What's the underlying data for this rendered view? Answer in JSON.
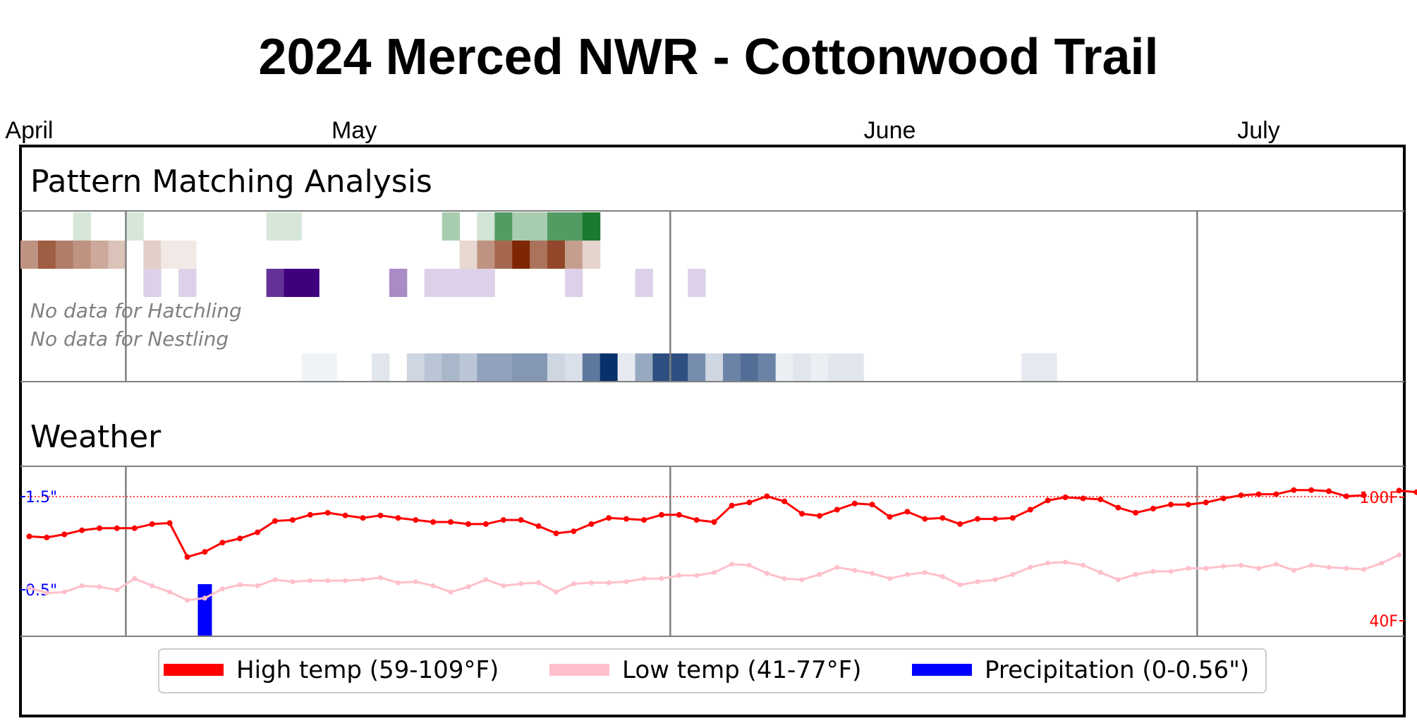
{
  "title": "2024 Merced NWR - Cottonwood Trail",
  "months": [
    {
      "label": "April",
      "day": 0
    },
    {
      "label": "May",
      "day": 18.5
    },
    {
      "label": "June",
      "day": 49
    },
    {
      "label": "July",
      "day": 70
    }
  ],
  "chart_data": {
    "type": "heatmap",
    "x_start": "2024-04-25",
    "x_end": "2024-07-12",
    "month_boundaries": [
      "2024-05-01",
      "2024-06-01",
      "2024-07-01"
    ],
    "pattern_section": {
      "title": "Pattern Matching Analysis",
      "rows": [
        {
          "palette": "green",
          "color": "#1a7a2e",
          "cells": [
            {
              "day": 3,
              "v": 0.18
            },
            {
              "day": 6,
              "v": 0.18
            },
            {
              "day": 14,
              "v": 0.18
            },
            {
              "day": 15,
              "v": 0.18
            },
            {
              "day": 24,
              "v": 0.38
            },
            {
              "day": 26,
              "v": 0.2
            },
            {
              "day": 27,
              "v": 0.75
            },
            {
              "day": 28,
              "v": 0.38
            },
            {
              "day": 29,
              "v": 0.38
            },
            {
              "day": 30,
              "v": 0.75
            },
            {
              "day": 31,
              "v": 0.75
            },
            {
              "day": 32,
              "v": 1.0
            }
          ]
        },
        {
          "palette": "orange",
          "color": "#7f2704",
          "cells": [
            {
              "day": 0,
              "v": 0.5
            },
            {
              "day": 1,
              "v": 0.75
            },
            {
              "day": 2,
              "v": 0.6
            },
            {
              "day": 3,
              "v": 0.5
            },
            {
              "day": 4,
              "v": 0.4
            },
            {
              "day": 5,
              "v": 0.28
            },
            {
              "day": 7,
              "v": 0.22
            },
            {
              "day": 8,
              "v": 0.1
            },
            {
              "day": 9,
              "v": 0.1
            },
            {
              "day": 25,
              "v": 0.18
            },
            {
              "day": 26,
              "v": 0.5
            },
            {
              "day": 27,
              "v": 0.7
            },
            {
              "day": 28,
              "v": 1.0
            },
            {
              "day": 29,
              "v": 0.65
            },
            {
              "day": 30,
              "v": 0.85
            },
            {
              "day": 31,
              "v": 0.45
            },
            {
              "day": 32,
              "v": 0.2
            }
          ]
        },
        {
          "palette": "purple",
          "color": "#3f007d",
          "cells": [
            {
              "day": 7,
              "v": 0.18
            },
            {
              "day": 9,
              "v": 0.18
            },
            {
              "day": 14,
              "v": 0.8
            },
            {
              "day": 15,
              "v": 1.0
            },
            {
              "day": 16,
              "v": 1.0
            },
            {
              "day": 21,
              "v": 0.45
            },
            {
              "day": 23,
              "v": 0.18
            },
            {
              "day": 24,
              "v": 0.18
            },
            {
              "day": 25,
              "v": 0.18
            },
            {
              "day": 26,
              "v": 0.18
            },
            {
              "day": 31,
              "v": 0.18
            },
            {
              "day": 35,
              "v": 0.18
            },
            {
              "day": 38,
              "v": 0.18
            }
          ]
        },
        {
          "label": "No data for Hatchling"
        },
        {
          "label": "No data for Nestling"
        },
        {
          "palette": "blue",
          "color": "#08306b",
          "cells": [
            {
              "day": 16,
              "v": 0.06
            },
            {
              "day": 17,
              "v": 0.06
            },
            {
              "day": 20,
              "v": 0.12
            },
            {
              "day": 22,
              "v": 0.2
            },
            {
              "day": 23,
              "v": 0.28
            },
            {
              "day": 24,
              "v": 0.35
            },
            {
              "day": 25,
              "v": 0.28
            },
            {
              "day": 26,
              "v": 0.45
            },
            {
              "day": 27,
              "v": 0.45
            },
            {
              "day": 28,
              "v": 0.5
            },
            {
              "day": 29,
              "v": 0.5
            },
            {
              "day": 30,
              "v": 0.2
            },
            {
              "day": 31,
              "v": 0.15
            },
            {
              "day": 32,
              "v": 0.65
            },
            {
              "day": 33,
              "v": 1.0
            },
            {
              "day": 34,
              "v": 0.1
            },
            {
              "day": 35,
              "v": 0.42
            },
            {
              "day": 36,
              "v": 0.85
            },
            {
              "day": 37,
              "v": 0.85
            },
            {
              "day": 38,
              "v": 0.55
            },
            {
              "day": 39,
              "v": 0.2
            },
            {
              "day": 40,
              "v": 0.6
            },
            {
              "day": 41,
              "v": 0.7
            },
            {
              "day": 42,
              "v": 0.6
            },
            {
              "day": 43,
              "v": 0.08
            },
            {
              "day": 44,
              "v": 0.12
            },
            {
              "day": 45,
              "v": 0.08
            },
            {
              "day": 46,
              "v": 0.12
            },
            {
              "day": 47,
              "v": 0.12
            },
            {
              "day": 57,
              "v": 0.1
            },
            {
              "day": 58,
              "v": 0.1
            }
          ]
        }
      ]
    },
    "weather_section": {
      "title": "Weather",
      "temp_axis": {
        "min": 40,
        "max": 100,
        "labels": [
          "40F",
          "100F"
        ]
      },
      "precip_axis": {
        "labels": [
          "0.5\"",
          "1.5\""
        ],
        "label_values": [
          0.5,
          1.5
        ]
      },
      "precip_ref_line": 1.5,
      "series": [
        {
          "name": "High temp (59-109°F)",
          "color": "#ff0000",
          "values": [
            81,
            80.5,
            82,
            84,
            85,
            85,
            85,
            87,
            87.5,
            71,
            73.5,
            78,
            80,
            83,
            88.5,
            89,
            91.5,
            92.5,
            91.2,
            90,
            91.2,
            90,
            89,
            88,
            88,
            87,
            87,
            89,
            89,
            86,
            82.5,
            83.5,
            87,
            90,
            89.5,
            89,
            91.5,
            91.5,
            89,
            88,
            96,
            97.5,
            100.5,
            98,
            92,
            91,
            94,
            97,
            96.5,
            90.5,
            93,
            89.5,
            90,
            87,
            89.5,
            89.5,
            90,
            94,
            98.5,
            100,
            99.5,
            99,
            95,
            92.5,
            94.5,
            96.5,
            96.5,
            97.5,
            99.5,
            101,
            101.5,
            101.5,
            103.5,
            103.5,
            103,
            100.5,
            101,
            null,
            103.3,
            102.5
          ]
        },
        {
          "name": "Low temp (41-77°F)",
          "color": "#ffc0cb",
          "values": [
            56,
            53.5,
            54,
            57,
            56.5,
            55,
            60.5,
            57,
            54,
            50,
            51,
            55.5,
            57.5,
            57,
            60,
            59,
            59.5,
            59.5,
            59.5,
            60,
            61,
            58.5,
            59,
            57,
            54,
            56.5,
            60,
            57,
            58,
            58.5,
            54,
            58,
            58.5,
            58.5,
            59,
            60.5,
            60.5,
            62,
            62,
            63.5,
            67.5,
            67,
            63,
            60.5,
            60,
            62.5,
            66,
            64.5,
            63,
            60.5,
            62.5,
            63.5,
            61.5,
            57.5,
            59,
            60,
            62.5,
            66,
            68,
            68.5,
            67,
            63.5,
            60,
            62.5,
            64,
            64,
            65.5,
            65.5,
            66.5,
            67,
            65.5,
            67.5,
            64.5,
            67,
            66,
            65.5,
            65,
            68,
            72
          ]
        },
        {
          "name": "Precipitation (0-0.56\")",
          "color": "#0000ff",
          "values": [
            {
              "day": 10,
              "v": 0.56
            }
          ]
        }
      ]
    },
    "legend": [
      {
        "label": "High temp (59-109°F)",
        "color": "#ff0000"
      },
      {
        "label": "Low temp (41-77°F)",
        "color": "#ffc0cb"
      },
      {
        "label": "Precipitation (0-0.56\")",
        "color": "#0000ff"
      }
    ]
  }
}
